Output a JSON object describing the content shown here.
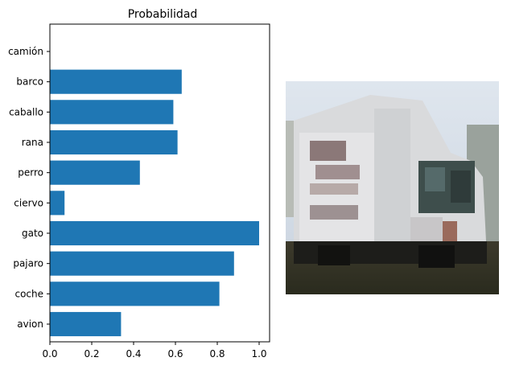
{
  "chart_data": {
    "type": "bar",
    "orientation": "horizontal",
    "title": "Probabilidad",
    "xlabel": "",
    "ylabel": "",
    "categories": [
      "avion",
      "coche",
      "pajaro",
      "gato",
      "ciervo",
      "perro",
      "rana",
      "caballo",
      "barco",
      "camión"
    ],
    "values": [
      0.34,
      0.81,
      0.88,
      1.0,
      0.07,
      0.43,
      0.61,
      0.59,
      0.63,
      0.0
    ],
    "xlim": [
      0,
      1.05
    ],
    "xticks": [
      0.0,
      0.2,
      0.4,
      0.6,
      0.8,
      1.0
    ],
    "xtick_labels": [
      "0.0",
      "0.2",
      "0.4",
      "0.6",
      "0.8",
      "1.0"
    ],
    "grid": false,
    "bar_color": "#1f77b4"
  },
  "image_panel": {
    "icon": "truck-photo-thumbnail"
  }
}
